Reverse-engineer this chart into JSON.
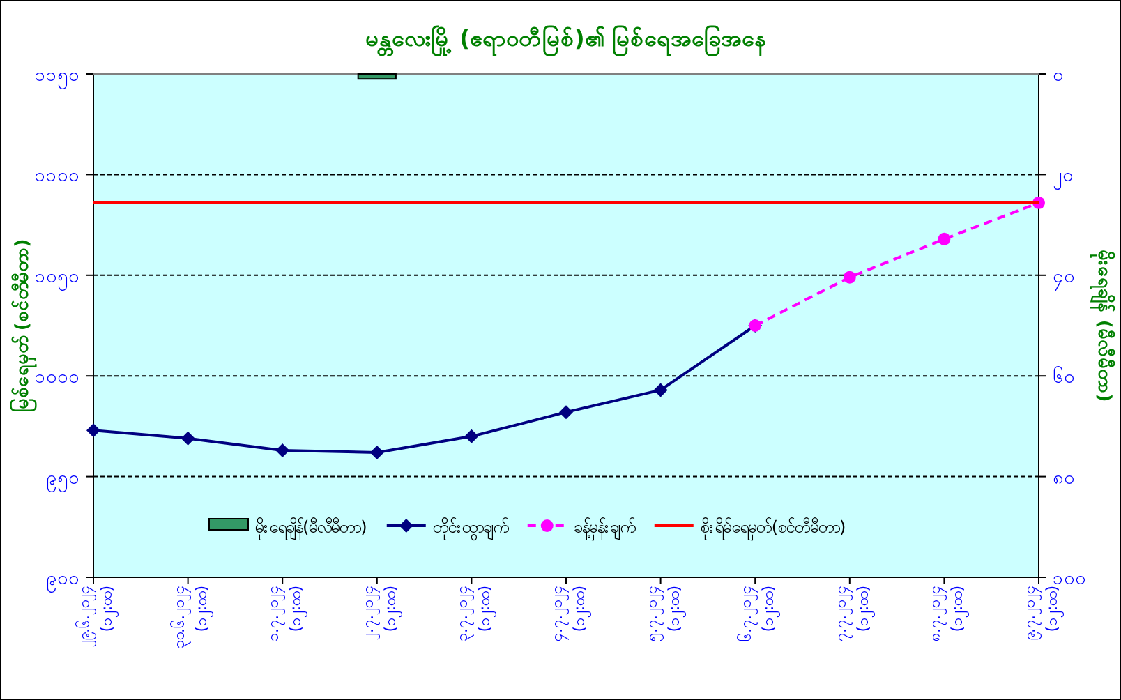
{
  "chart_data": {
    "type": "line",
    "title": "မန္တလေးမြို့ (ဧရာဝတီမြစ်)၏ မြစ်ရေအခြေအနေ",
    "ylabel": "မြစ်ရေမှတ် (စင်တီမီတာ)",
    "y2label": "မိုးရေချိန် (မီလီမီတာ)",
    "categories": [
      "၂၉.၆.၂၀၂၄ (၁၂:၀၀)",
      "၃၀.၆.၂၀၂၄ (၁၂:၀၀)",
      "၁.၇.၂၀၂၄ (၁၂:၀၀)",
      "၂.၇.၂၀၂၄ (၁၂:၀၀)",
      "၃.၇.၂၀၂၄ (၁၂:၀၀)",
      "၄.၇.၂၀၂၄ (၁၂:၀၀)",
      "၅.၇.၂၀၂၄ (၁၂:၀၀)",
      "၆.၇.၂၀၂၄ (၁၂:၀၀)",
      "၇.၇.၂၀၂၄ (၁၂:၀၀)",
      "၈.၇.၂၀၂၄ (၁၂:၀၀)",
      "၉.၇.၂၀၂၄ (၁၂:၀၀)"
    ],
    "series": [
      {
        "name": "မိုးရေချိန်(မီလီမီတာ)",
        "type": "bar",
        "axis": "y2",
        "color": "#339966",
        "values": [
          null,
          null,
          null,
          1,
          null,
          null,
          null,
          null,
          null,
          null,
          null
        ]
      },
      {
        "name": "တိုင်းထွာချက်",
        "color": "#000080",
        "marker": "diamond",
        "line_style": "solid",
        "values": [
          973,
          969,
          963,
          962,
          970,
          982,
          993,
          1025,
          null,
          null,
          null
        ]
      },
      {
        "name": "ခန့်မှန်းချက်",
        "color": "#ff00ff",
        "marker": "circle",
        "line_style": "dashed",
        "values": [
          null,
          null,
          null,
          null,
          null,
          null,
          null,
          1025,
          1049,
          1068,
          1086
        ]
      },
      {
        "name": "စိုးရိမ်ရေမှတ်(စင်တီမီတာ)",
        "color": "#ff0000",
        "marker": "none",
        "line_style": "solid",
        "values": [
          1086,
          1086,
          1086,
          1086,
          1086,
          1086,
          1086,
          1086,
          1086,
          1086,
          1086
        ]
      }
    ],
    "ylim": [
      900,
      1150
    ],
    "yticks": [
      {
        "value": 900,
        "label": "၉၀၀"
      },
      {
        "value": 950,
        "label": "၉၅၀"
      },
      {
        "value": 1000,
        "label": "၁၀၀၀"
      },
      {
        "value": 1050,
        "label": "၁၀၅၀"
      },
      {
        "value": 1100,
        "label": "၁၁၀၀"
      },
      {
        "value": 1150,
        "label": "၁၁၅၀"
      }
    ],
    "y2lim": [
      100,
      0
    ],
    "y2ticks": [
      {
        "value": 0,
        "label": "၀"
      },
      {
        "value": 20,
        "label": "၂၀"
      },
      {
        "value": 40,
        "label": "၄၀"
      },
      {
        "value": 60,
        "label": "၆၀"
      },
      {
        "value": 80,
        "label": "၈၀"
      },
      {
        "value": 100,
        "label": "၁၀၀"
      }
    ],
    "grid": "y",
    "legend": "bottom"
  }
}
